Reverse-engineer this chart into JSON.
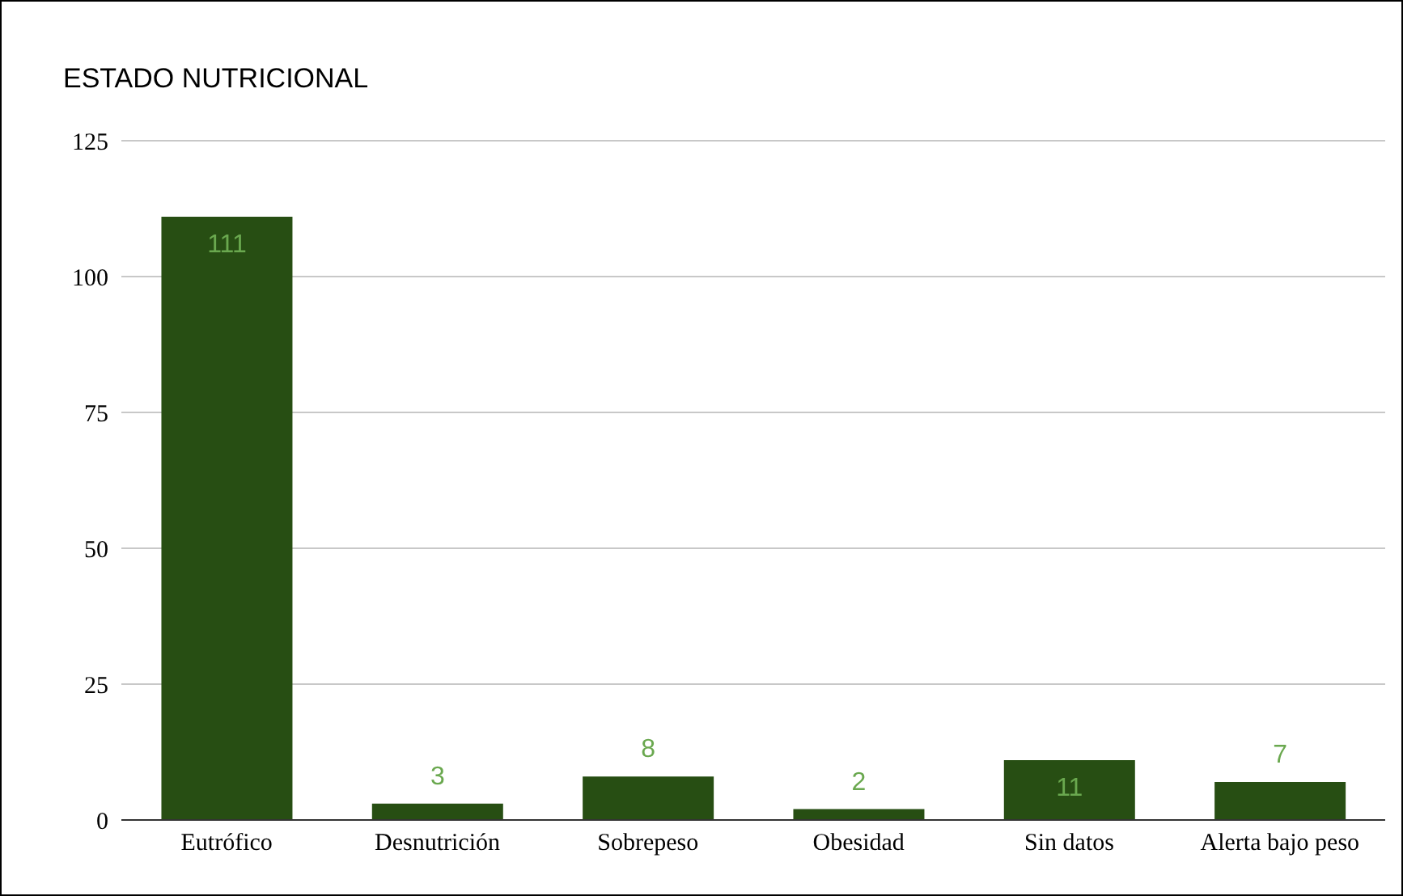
{
  "chart_data": {
    "type": "bar",
    "title": "ESTADO NUTRICIONAL",
    "categories": [
      "Eutrófico",
      "Desnutrición",
      "Sobrepeso",
      "Obesidad",
      "Sin datos",
      "Alerta bajo peso"
    ],
    "values": [
      111,
      3,
      8,
      2,
      11,
      7
    ],
    "color": "#274e13",
    "ylim": [
      0,
      125
    ],
    "yticks": [
      0,
      25,
      50,
      75,
      100,
      125
    ],
    "grid": "y",
    "data_labels": true
  }
}
